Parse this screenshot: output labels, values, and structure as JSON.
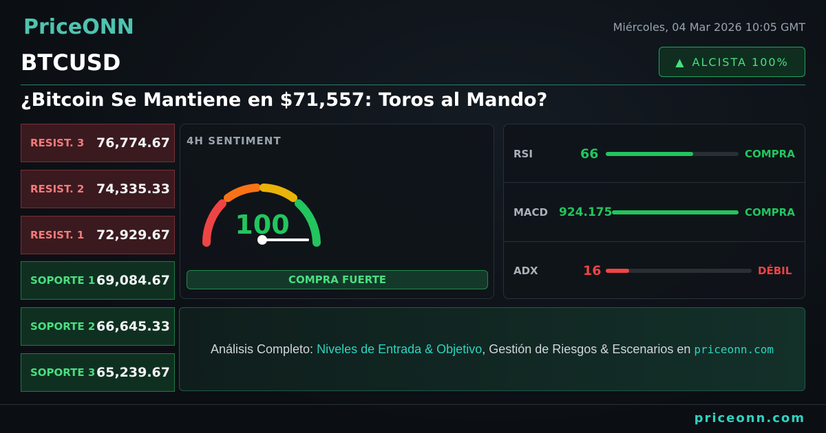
{
  "header": {
    "logo": "PriceONN",
    "date": "Miércoles, 04 Mar 2026 10:05 GMT",
    "symbol": "BTCUSD",
    "badge": "ALCISTA 100%",
    "headline": "¿Bitcoin Se Mantiene en $71,557: Toros al Mando?"
  },
  "levels": [
    {
      "label": "RESIST. 3",
      "value": "76,774.67",
      "kind": "resistance"
    },
    {
      "label": "RESIST. 2",
      "value": "74,335.33",
      "kind": "resistance"
    },
    {
      "label": "RESIST. 1",
      "value": "72,929.67",
      "kind": "resistance"
    },
    {
      "label": "SOPORTE 1",
      "value": "69,084.67",
      "kind": "support"
    },
    {
      "label": "SOPORTE 2",
      "value": "66,645.33",
      "kind": "support"
    },
    {
      "label": "SOPORTE 3",
      "value": "65,239.67",
      "kind": "support"
    }
  ],
  "sentiment": {
    "title": "4H SENTIMENT",
    "value": "100",
    "signal": "COMPRA FUERTE"
  },
  "indicators": [
    {
      "name": "RSI",
      "value": "66",
      "signal": "COMPRA"
    },
    {
      "name": "MACD",
      "value": "924.175",
      "signal": "COMPRA"
    },
    {
      "name": "ADX",
      "value": "16",
      "signal": "DÉBIL"
    }
  ],
  "banner": {
    "lead": "Análisis Completo: ",
    "highlight": "Niveles de Entrada & Objetivo",
    "middle": ", Gestión de Riesgos & Escenarios en ",
    "link": "priceonn.com"
  },
  "footer": {
    "site": "priceonn.com"
  }
}
